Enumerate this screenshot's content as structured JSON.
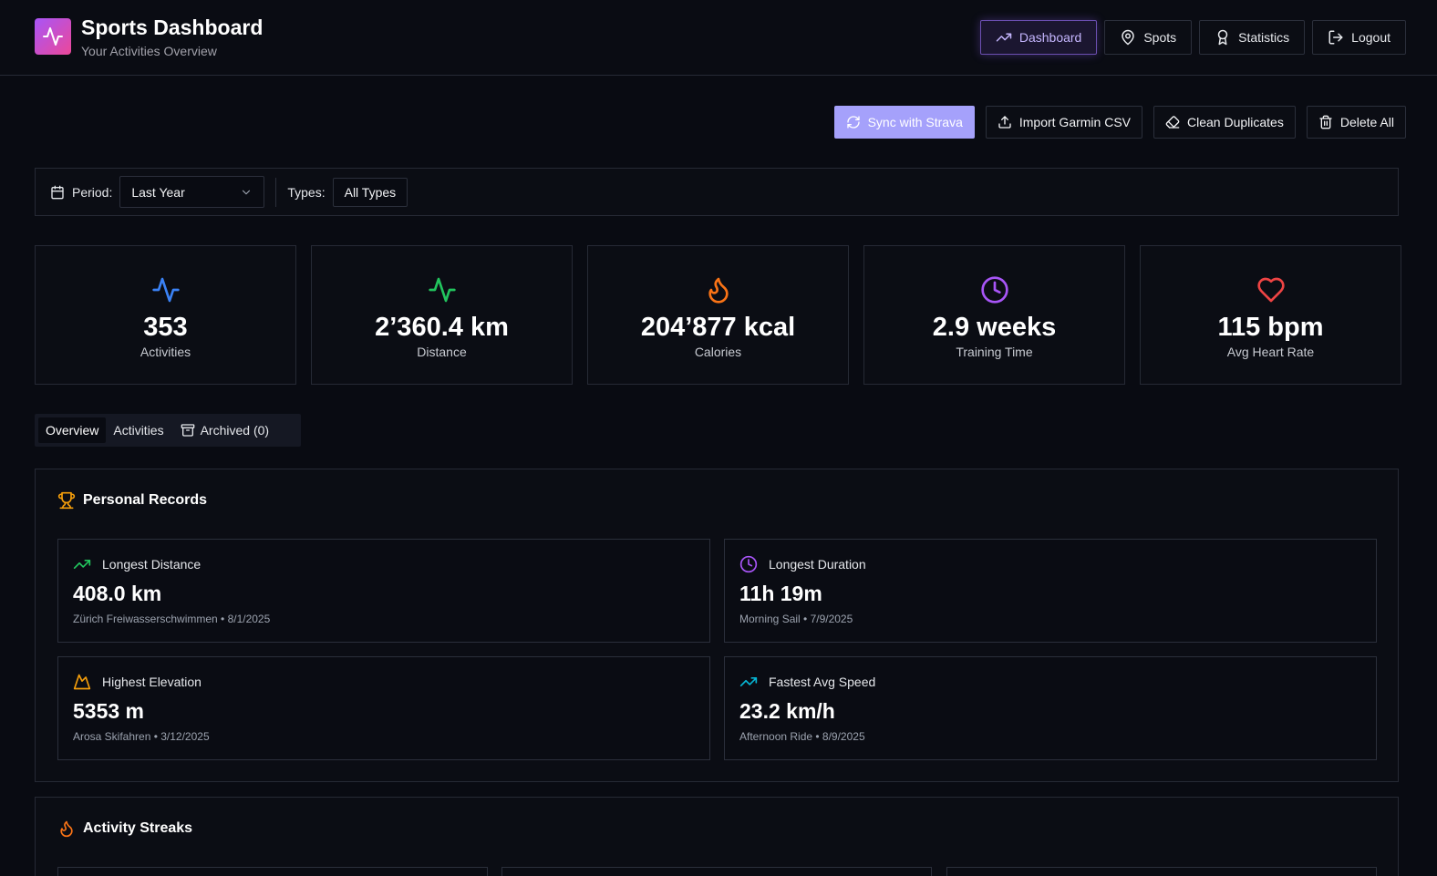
{
  "header": {
    "title": "Sports Dashboard",
    "subtitle": "Your Activities Overview",
    "logo_icon": "activity-pulse-icon",
    "logo_gradient": [
      "#a855f7",
      "#ec4899"
    ]
  },
  "nav": {
    "items": [
      {
        "label": "Dashboard",
        "icon": "trending-up-icon",
        "active": true
      },
      {
        "label": "Spots",
        "icon": "map-pin-icon",
        "active": false
      },
      {
        "label": "Statistics",
        "icon": "award-icon",
        "active": false
      },
      {
        "label": "Logout",
        "icon": "log-out-icon",
        "active": false
      }
    ]
  },
  "actions": {
    "sync": "Sync with Strava",
    "import": "Import Garmin CSV",
    "clean": "Clean Duplicates",
    "delete": "Delete All"
  },
  "filters": {
    "period_label": "Period:",
    "period_value": "Last Year",
    "types_label": "Types:",
    "types_value": "All Types"
  },
  "stats": [
    {
      "value": "353",
      "label": "Activities",
      "icon": "activity-icon",
      "color": "#3b82f6"
    },
    {
      "value": "2’360.4 km",
      "label": "Distance",
      "icon": "activity-icon",
      "color": "#22c55e"
    },
    {
      "value": "204’877 kcal",
      "label": "Calories",
      "icon": "flame-icon",
      "color": "#f97316"
    },
    {
      "value": "2.9 weeks",
      "label": "Training Time",
      "icon": "clock-icon",
      "color": "#a855f7"
    },
    {
      "value": "115 bpm",
      "label": "Avg Heart Rate",
      "icon": "heart-icon",
      "color": "#ef4444"
    }
  ],
  "tabs": {
    "overview": "Overview",
    "activities": "Activities",
    "archived": "Archived (0)"
  },
  "records": {
    "title": "Personal Records",
    "items": [
      {
        "label": "Longest Distance",
        "value": "408.0 km",
        "sub": "Zürich Freiwasserschwimmen • 8/1/2025",
        "icon": "trending-up-icon",
        "color": "#22c55e"
      },
      {
        "label": "Longest Duration",
        "value": "11h 19m",
        "sub": "Morning Sail • 7/9/2025",
        "icon": "clock-icon",
        "color": "#a855f7"
      },
      {
        "label": "Highest Elevation",
        "value": "5353 m",
        "sub": "Arosa Skifahren • 3/12/2025",
        "icon": "mountain-icon",
        "color": "#f59e0b"
      },
      {
        "label": "Fastest Avg Speed",
        "value": "23.2 km/h",
        "sub": "Afternoon Ride • 8/9/2025",
        "icon": "trending-up-icon",
        "color": "#06b6d4"
      }
    ]
  },
  "streaks": {
    "title": "Activity Streaks"
  }
}
